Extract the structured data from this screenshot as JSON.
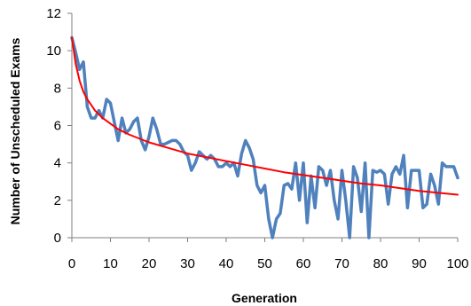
{
  "chart_data": {
    "type": "line",
    "title": "",
    "xlabel": "Generation",
    "ylabel": "Number of Unscheduled Exams",
    "xlim": [
      0,
      100
    ],
    "ylim": [
      0,
      12
    ],
    "x_ticks": [
      0,
      10,
      20,
      30,
      40,
      50,
      60,
      70,
      80,
      90,
      100
    ],
    "y_ticks": [
      0,
      2,
      4,
      6,
      8,
      10,
      12
    ],
    "grid": false,
    "legend": "none",
    "series": [
      {
        "color": "#4F81BD",
        "x": [
          0,
          1,
          2,
          3,
          4,
          5,
          6,
          7,
          8,
          9,
          10,
          11,
          12,
          13,
          14,
          15,
          16,
          17,
          18,
          19,
          20,
          21,
          22,
          23,
          24,
          25,
          26,
          27,
          28,
          29,
          30,
          31,
          32,
          33,
          34,
          35,
          36,
          37,
          38,
          39,
          40,
          41,
          42,
          43,
          44,
          45,
          46,
          47,
          48,
          49,
          50,
          51,
          52,
          53,
          54,
          55,
          56,
          57,
          58,
          59,
          60,
          61,
          62,
          63,
          64,
          65,
          66,
          67,
          68,
          69,
          70,
          71,
          72,
          73,
          74,
          75,
          76,
          77,
          78,
          79,
          80,
          81,
          82,
          83,
          84,
          85,
          86,
          87,
          88,
          89,
          90,
          91,
          92,
          93,
          94,
          95,
          96,
          97,
          98,
          99,
          100
        ],
        "values": [
          10.7,
          9.9,
          9.0,
          9.4,
          7.0,
          6.4,
          6.4,
          6.8,
          6.4,
          7.4,
          7.2,
          6.2,
          5.2,
          6.4,
          5.6,
          5.8,
          6.2,
          6.4,
          5.2,
          4.7,
          5.4,
          6.4,
          5.8,
          5.0,
          5.0,
          5.1,
          5.2,
          5.2,
          5.0,
          4.6,
          4.4,
          3.6,
          4.0,
          4.6,
          4.4,
          4.2,
          4.4,
          4.2,
          3.8,
          3.8,
          4.0,
          3.8,
          4.0,
          3.3,
          4.5,
          5.2,
          4.8,
          4.2,
          2.8,
          2.4,
          2.8,
          1.0,
          0.0,
          1.0,
          1.3,
          2.8,
          2.9,
          2.6,
          4.0,
          2.0,
          4.0,
          0.8,
          3.3,
          1.6,
          3.8,
          3.6,
          2.8,
          3.6,
          2.0,
          1.0,
          3.6,
          2.0,
          0.0,
          3.8,
          3.2,
          1.4,
          4.0,
          0.0,
          3.6,
          3.5,
          3.6,
          3.4,
          1.8,
          3.4,
          3.8,
          3.4,
          4.4,
          1.6,
          3.6,
          3.6,
          3.6,
          1.6,
          1.8,
          3.4,
          2.8,
          1.8,
          4.0,
          3.8,
          3.8,
          3.8,
          3.2
        ]
      },
      {
        "color": "#FF0000",
        "type": "trendline",
        "x": [
          0,
          1,
          2,
          3,
          4,
          5,
          6,
          7,
          8,
          10,
          12,
          15,
          20,
          25,
          30,
          35,
          40,
          45,
          50,
          55,
          60,
          65,
          70,
          75,
          80,
          85,
          90,
          95,
          100
        ],
        "values": [
          10.7,
          9.3,
          8.4,
          7.8,
          7.4,
          7.1,
          6.8,
          6.6,
          6.4,
          6.1,
          5.8,
          5.5,
          5.1,
          4.8,
          4.5,
          4.3,
          4.1,
          3.9,
          3.7,
          3.5,
          3.35,
          3.2,
          3.05,
          2.9,
          2.8,
          2.65,
          2.5,
          2.4,
          2.3
        ]
      }
    ]
  }
}
